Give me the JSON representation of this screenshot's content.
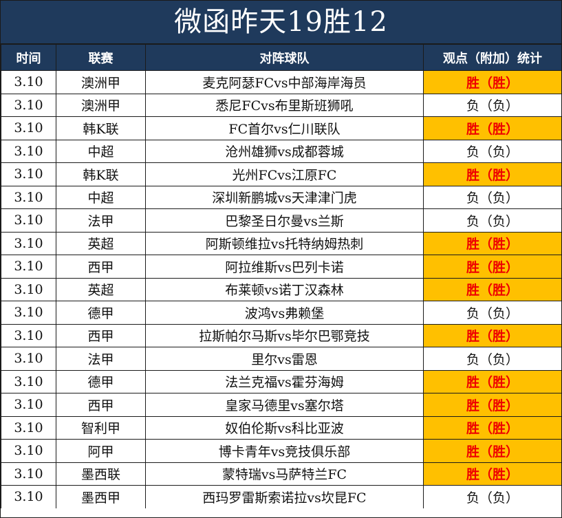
{
  "title": "微函昨天19胜12",
  "headers": {
    "time": "时间",
    "league": "联赛",
    "match": "对阵球队",
    "result": "观点（附加）统计"
  },
  "colors": {
    "header_bg": "#1f3a5c",
    "win_bg": "#ffc000",
    "win_text": "#ee0000"
  },
  "rows": [
    {
      "time": "3.10",
      "league": "澳洲甲",
      "match": "麦克阿瑟FCvs中部海岸海员",
      "result": "胜（胜）",
      "outcome": "win"
    },
    {
      "time": "3.10",
      "league": "澳洲甲",
      "match": "悉尼FCvs布里斯班狮吼",
      "result": "负（负）",
      "outcome": "lose"
    },
    {
      "time": "3.10",
      "league": "韩K联",
      "match": "FC首尔vs仁川联队",
      "result": "胜（胜）",
      "outcome": "win"
    },
    {
      "time": "3.10",
      "league": "中超",
      "match": "沧州雄狮vs成都蓉城",
      "result": "负（负）",
      "outcome": "lose"
    },
    {
      "time": "3.10",
      "league": "韩K联",
      "match": "光州FCvs江原FC",
      "result": "胜（胜）",
      "outcome": "win"
    },
    {
      "time": "3.10",
      "league": "中超",
      "match": "深圳新鹏城vs天津津门虎",
      "result": "负（负）",
      "outcome": "lose"
    },
    {
      "time": "3.10",
      "league": "法甲",
      "match": "巴黎圣日尔曼vs兰斯",
      "result": "负（负）",
      "outcome": "lose"
    },
    {
      "time": "3.10",
      "league": "英超",
      "match": "阿斯顿维拉vs托特纳姆热刺",
      "result": "胜（胜）",
      "outcome": "win"
    },
    {
      "time": "3.10",
      "league": "西甲",
      "match": "阿拉维斯vs巴列卡诺",
      "result": "胜（胜）",
      "outcome": "win"
    },
    {
      "time": "3.10",
      "league": "英超",
      "match": "布莱顿vs诺丁汉森林",
      "result": "胜（胜）",
      "outcome": "win"
    },
    {
      "time": "3.10",
      "league": "德甲",
      "match": "波鸿vs弗赖堡",
      "result": "负（负）",
      "outcome": "lose"
    },
    {
      "time": "3.10",
      "league": "西甲",
      "match": "拉斯帕尔马斯vs毕尔巴鄂竞技",
      "result": "胜（胜）",
      "outcome": "win"
    },
    {
      "time": "3.10",
      "league": "法甲",
      "match": "里尔vs雷恩",
      "result": "负（负）",
      "outcome": "lose"
    },
    {
      "time": "3.10",
      "league": "德甲",
      "match": "法兰克福vs霍芬海姆",
      "result": "胜（胜）",
      "outcome": "win"
    },
    {
      "time": "3.10",
      "league": "西甲",
      "match": "皇家马德里vs塞尔塔",
      "result": "胜（胜）",
      "outcome": "win"
    },
    {
      "time": "3.10",
      "league": "智利甲",
      "match": "奴伯伦斯vs科比亚波",
      "result": "胜（胜）",
      "outcome": "win"
    },
    {
      "time": "3.10",
      "league": "阿甲",
      "match": "博卡青年vs竞技俱乐部",
      "result": "胜（胜）",
      "outcome": "win"
    },
    {
      "time": "3.10",
      "league": "墨西联",
      "match": "蒙特瑞vs马萨特兰FC",
      "result": "胜（胜）",
      "outcome": "win"
    },
    {
      "time": "3.10",
      "league": "墨西甲",
      "match": "西玛罗雷斯索诺拉vs坎昆FC",
      "result": "负（负）",
      "outcome": "lose"
    }
  ]
}
